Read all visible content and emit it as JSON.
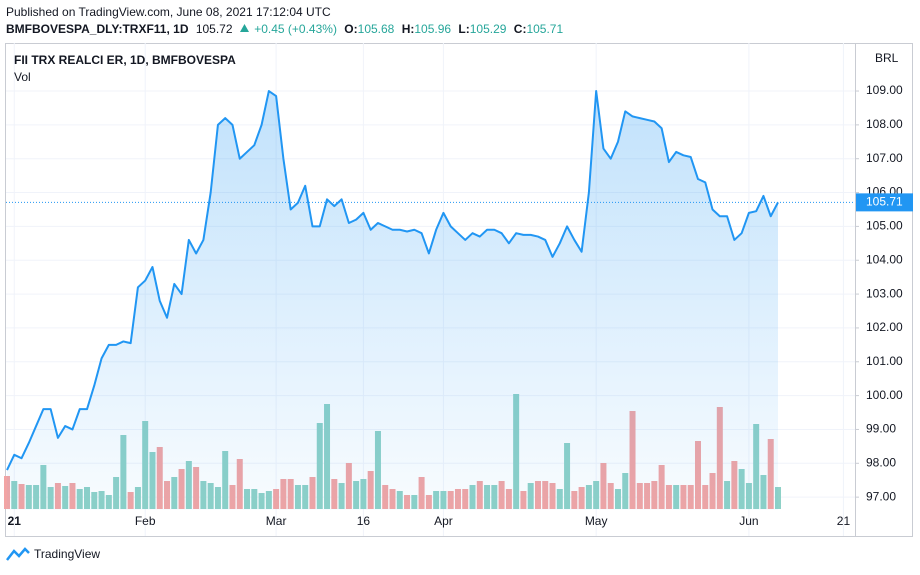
{
  "header": {
    "published": "Published on TradingView.com, June 08, 2021 17:12:04 UTC",
    "symbol": "BMFBOVESPA_DLY:TRXF11, 1D",
    "price": 105.72,
    "change": "+0.45 (+0.43%)",
    "ohlc": [
      {
        "label": "O:",
        "value": 105.68
      },
      {
        "label": "H:",
        "value": 105.96
      },
      {
        "label": "L:",
        "value": 105.29
      },
      {
        "label": "C:",
        "value": 105.71
      }
    ]
  },
  "chart_data": {
    "type": "line",
    "title": "FII TRX REALCI ER, 1D, BMFBOVESPA",
    "currency": "BRL",
    "categories": [
      null,
      "21",
      null,
      null,
      null,
      null,
      null,
      null,
      null,
      null,
      null,
      null,
      null,
      null,
      null,
      null,
      null,
      null,
      null,
      "Feb",
      null,
      null,
      null,
      null,
      null,
      null,
      null,
      null,
      null,
      null,
      null,
      null,
      null,
      null,
      null,
      null,
      null,
      "Mar",
      null,
      null,
      null,
      null,
      null,
      null,
      null,
      null,
      null,
      null,
      null,
      "16",
      null,
      null,
      null,
      null,
      null,
      null,
      null,
      null,
      null,
      null,
      "Apr",
      null,
      null,
      null,
      null,
      null,
      null,
      null,
      null,
      null,
      null,
      null,
      null,
      null,
      null,
      null,
      null,
      null,
      null,
      null,
      null,
      "May",
      null,
      null,
      null,
      null,
      null,
      null,
      null,
      null,
      null,
      null,
      null,
      null,
      null,
      null,
      null,
      null,
      null,
      null,
      null,
      null,
      "Jun",
      null,
      null,
      null,
      null,
      null,
      null,
      null,
      null,
      null,
      null,
      null,
      null,
      "21"
    ],
    "series": [
      {
        "name": "FII TRX REALCI ER, 1D, BMFBOVESPA",
        "color": "#2196f3",
        "values": [
          97.8,
          98.25,
          98.15,
          98.6,
          99.1,
          99.6,
          99.6,
          98.75,
          99.1,
          99.0,
          99.6,
          99.6,
          100.3,
          101.1,
          101.5,
          101.5,
          101.6,
          101.55,
          103.2,
          103.4,
          103.8,
          102.8,
          102.3,
          103.3,
          103.0,
          104.6,
          104.2,
          104.6,
          106.0,
          108.0,
          108.2,
          108.0,
          107.0,
          107.2,
          107.4,
          108.0,
          109.0,
          108.85,
          107.0,
          105.5,
          105.7,
          106.2,
          105.0,
          105.0,
          105.8,
          105.6,
          105.8,
          105.1,
          105.2,
          105.4,
          104.9,
          105.1,
          105.0,
          104.9,
          104.9,
          104.85,
          104.9,
          104.8,
          104.2,
          104.9,
          105.4,
          105.0,
          104.8,
          104.6,
          104.8,
          104.7,
          104.9,
          104.9,
          104.8,
          104.5,
          104.8,
          104.75,
          104.75,
          104.7,
          104.6,
          104.1,
          104.5,
          105.0,
          104.6,
          104.25,
          106.0,
          109.0,
          107.3,
          107.0,
          107.5,
          108.4,
          108.25,
          108.2,
          108.15,
          108.1,
          107.9,
          106.9,
          107.2,
          107.1,
          107.05,
          106.4,
          106.3,
          105.5,
          105.3,
          105.3,
          104.6,
          104.8,
          105.4,
          105.45,
          105.9,
          105.3,
          105.71,
          null,
          null,
          null,
          null,
          null,
          null,
          null,
          null,
          null
        ]
      },
      {
        "name": "Vol",
        "up_color": "#8ed1c7",
        "down_color": "#f2a4a4",
        "values": [
          33,
          28,
          25,
          24,
          24,
          44,
          22,
          26,
          23,
          26,
          20,
          22,
          17,
          18,
          14,
          32,
          74,
          17,
          22,
          88,
          57,
          62,
          28,
          32,
          40,
          48,
          42,
          28,
          26,
          22,
          58,
          24,
          50,
          20,
          20,
          16,
          18,
          20,
          30,
          30,
          24,
          24,
          32,
          86,
          105,
          30,
          26,
          46,
          28,
          30,
          38,
          78,
          24,
          20,
          18,
          14,
          14,
          32,
          14,
          18,
          18,
          18,
          20,
          20,
          24,
          28,
          24,
          24,
          28,
          20,
          115,
          18,
          26,
          28,
          28,
          26,
          20,
          66,
          18,
          22,
          24,
          28,
          46,
          26,
          20,
          36,
          98,
          26,
          26,
          28,
          44,
          24,
          24,
          24,
          24,
          68,
          24,
          36,
          102,
          28,
          48,
          40,
          26,
          85,
          34,
          70,
          22,
          null,
          null,
          null,
          null,
          null,
          null,
          null,
          null,
          null
        ]
      }
    ],
    "ylim": [
      96.62,
      110.36
    ],
    "yticks": [
      {
        "value": 97,
        "label": "97.00"
      },
      {
        "value": 98,
        "label": "98.00"
      },
      {
        "value": 99,
        "label": "99.00"
      },
      {
        "value": 100,
        "label": "100.00"
      },
      {
        "value": 101,
        "label": "101.00"
      },
      {
        "value": 102,
        "label": "102.00"
      },
      {
        "value": 103,
        "label": "103.00"
      },
      {
        "value": 104,
        "label": "104.00"
      },
      {
        "value": 105,
        "label": "105.00"
      },
      {
        "value": 106,
        "label": "106.00"
      },
      {
        "value": 107,
        "label": "107.00"
      },
      {
        "value": 108,
        "label": "108.00"
      },
      {
        "value": 109,
        "label": "109.00"
      }
    ],
    "grid": true
  },
  "footer": {
    "brand": "TradingView"
  }
}
